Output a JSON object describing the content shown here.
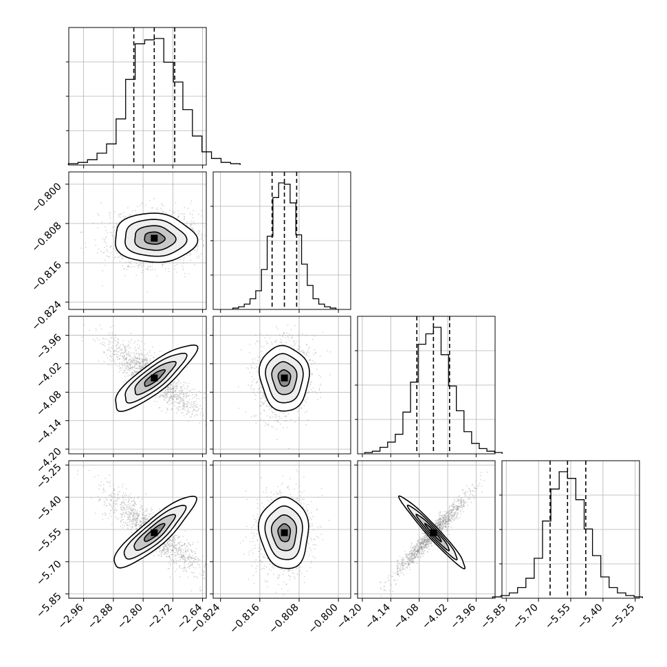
{
  "chart_data": {
    "type": "scatter",
    "title": "",
    "ndim": 4,
    "grid": true,
    "parameters": [
      {
        "mean": -2.77,
        "q16": -2.825,
        "q84": -2.715,
        "range": [
          -3.0,
          -2.63
        ],
        "ticks": [
          -2.96,
          -2.88,
          -2.8,
          -2.72,
          -2.64
        ],
        "tick_labels": [
          "−2.96",
          "−2.88",
          "−2.80",
          "−2.72",
          "−2.64"
        ],
        "hist_counts": [
          1,
          2,
          4,
          9,
          16,
          35,
          65,
          92,
          95,
          96,
          78,
          63,
          42,
          22,
          10,
          5,
          2,
          1
        ]
      },
      {
        "mean": -0.811,
        "q16": -0.8135,
        "q84": -0.8085,
        "range": [
          -0.8255,
          -0.7975
        ],
        "ticks": [
          -0.824,
          -0.816,
          -0.808,
          -0.8
        ],
        "tick_labels": [
          "−0.824",
          "−0.816",
          "−0.808",
          "−0.800"
        ],
        "hist_counts": [
          1,
          2,
          4,
          8,
          14,
          30,
          55,
          84,
          95,
          94,
          80,
          56,
          34,
          18,
          8,
          4,
          2,
          1
        ]
      },
      {
        "mean": -4.05,
        "q16": -4.085,
        "q84": -4.016,
        "range": [
          -4.21,
          -3.92
        ],
        "ticks": [
          -4.2,
          -4.14,
          -4.08,
          -4.02,
          -3.96
        ],
        "tick_labels": [
          "−4.20",
          "−4.14",
          "−4.08",
          "−4.02",
          "−3.96"
        ],
        "hist_counts": [
          1,
          2,
          5,
          9,
          15,
          32,
          55,
          84,
          92,
          97,
          76,
          52,
          33,
          17,
          8,
          4,
          2,
          1
        ]
      },
      {
        "mean": -5.565,
        "q16": -5.646,
        "q84": -5.48,
        "range": [
          -5.87,
          -5.23
        ],
        "ticks": [
          -5.85,
          -5.7,
          -5.55,
          -5.4,
          -5.25
        ],
        "tick_labels": [
          "−5.85",
          "−5.70",
          "−5.55",
          "−5.40",
          "−5.25"
        ],
        "hist_counts": [
          1,
          2,
          4,
          8,
          15,
          30,
          58,
          82,
          95,
          90,
          74,
          52,
          32,
          16,
          8,
          4,
          2,
          1
        ]
      }
    ],
    "correlations": [
      [
        1,
        0.05,
        -0.85,
        -0.88
      ],
      [
        0.05,
        1,
        0.05,
        0.05
      ],
      [
        -0.85,
        0.05,
        1,
        0.97
      ],
      [
        -0.88,
        0.05,
        0.97,
        1
      ]
    ],
    "hist_yticks": [
      0.25,
      0.5,
      0.75
    ]
  }
}
